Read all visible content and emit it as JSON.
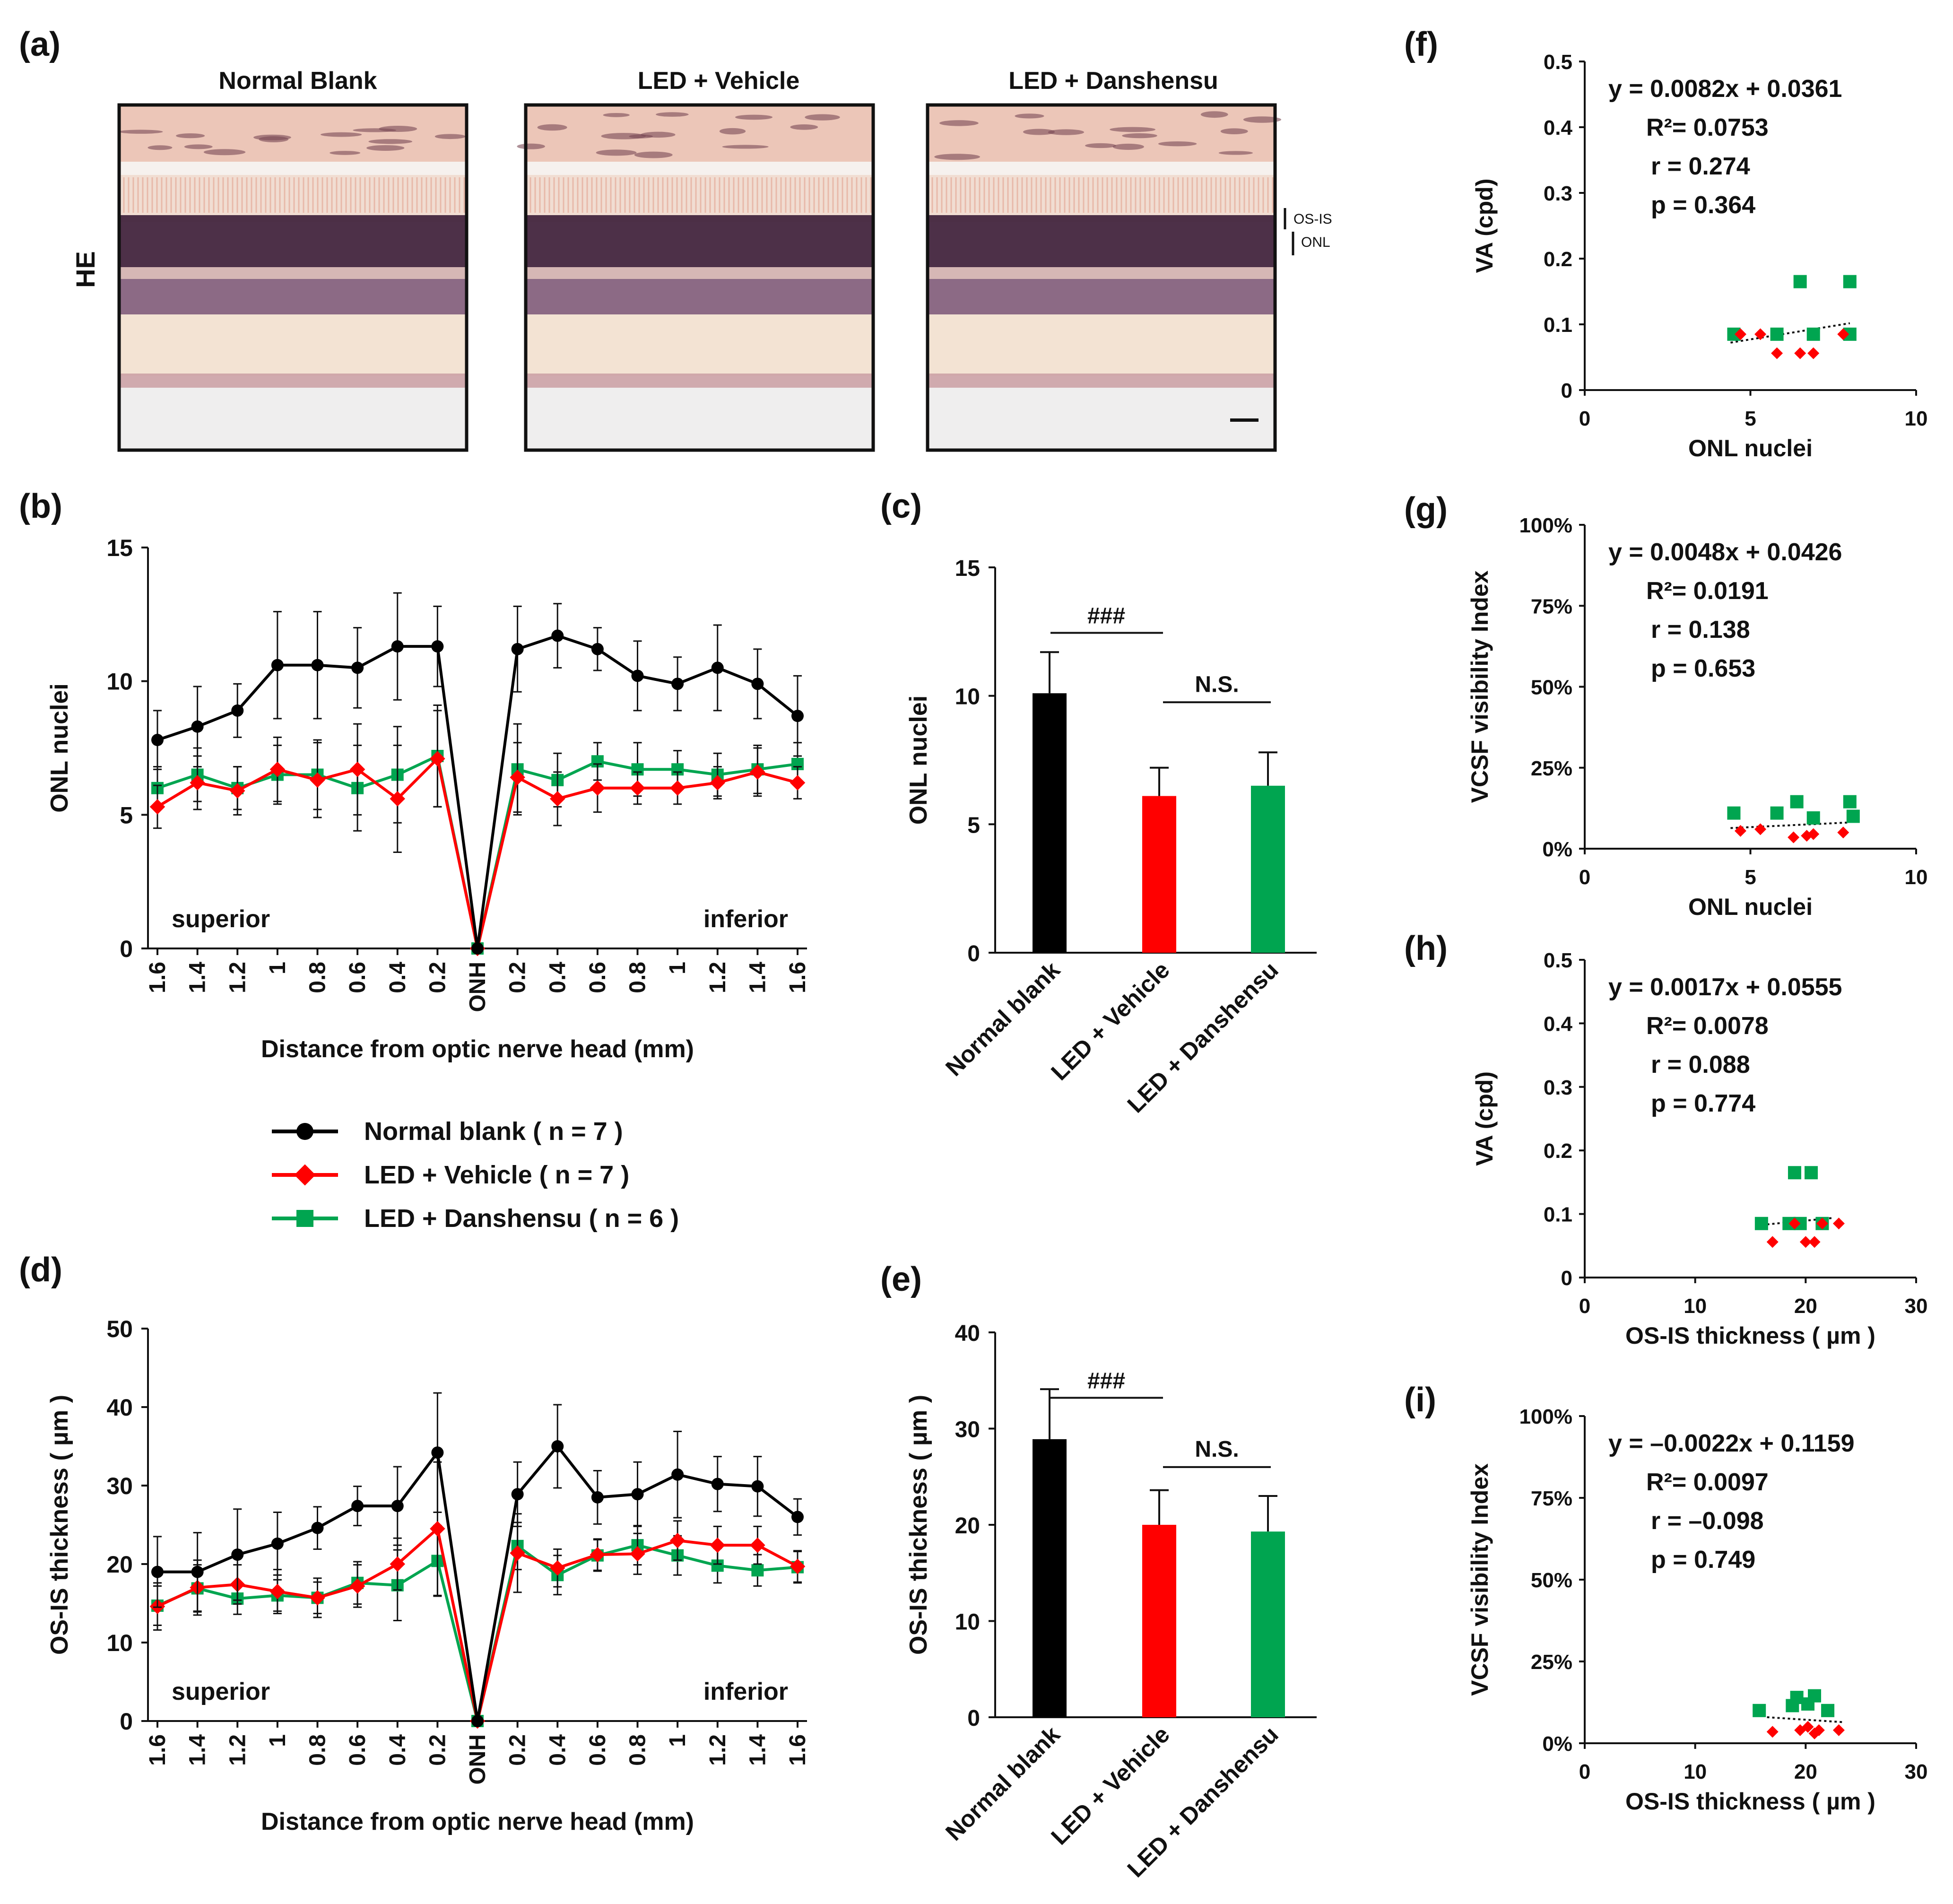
{
  "figure": {
    "colors": {
      "normal": "#000000",
      "vehicle": "#ff0000",
      "danshensu": "#00a550",
      "he_pink": "#ecc6b8",
      "he_nuclei": "#3e1f3a",
      "he_purple": "#8c6a85",
      "he_pale": "#f3e3d3"
    },
    "panel_letters": {
      "a": "(a)",
      "b": "(b)",
      "c": "(c)",
      "d": "(d)",
      "e": "(e)",
      "f": "(f)",
      "g": "(g)",
      "h": "(h)",
      "i": "(i)"
    },
    "histology": {
      "row_label": "HE",
      "titles": [
        "Normal Blank",
        "LED + Vehicle",
        "LED + Danshensu"
      ],
      "layer_labels": [
        "OS-IS",
        "ONL"
      ]
    },
    "legend": [
      {
        "key": "normal",
        "label": "Normal blank ( n = 7 )",
        "marker": "circle"
      },
      {
        "key": "vehicle",
        "label": "LED + Vehicle ( n = 7 )",
        "marker": "diamond"
      },
      {
        "key": "danshensu",
        "label": "LED + Danshensu ( n = 6 )",
        "marker": "square"
      }
    ]
  },
  "chart_data": [
    {
      "id": "b",
      "type": "line",
      "xlabel": "Distance from optic nerve head (mm)",
      "ylabel": "ONL nuclei",
      "x": [
        "1.6",
        "1.4",
        "1.2",
        "1",
        "0.8",
        "0.6",
        "0.4",
        "0.2",
        "ONH",
        "0.2",
        "0.4",
        "0.6",
        "0.8",
        "1",
        "1.2",
        "1.4",
        "1.6"
      ],
      "ylim": [
        0,
        15
      ],
      "yticks": [
        0,
        5,
        10,
        15
      ],
      "annotations": [
        "superior",
        "inferior"
      ],
      "series": [
        {
          "name": "Normal blank",
          "key": "normal",
          "values": [
            7.8,
            8.3,
            8.9,
            10.6,
            10.6,
            10.5,
            11.3,
            11.3,
            0,
            11.2,
            11.7,
            11.2,
            10.2,
            9.9,
            10.5,
            9.9,
            8.7
          ],
          "errors": [
            1.1,
            1.5,
            1.0,
            2.0,
            2.0,
            1.5,
            2.0,
            1.5,
            0,
            1.6,
            1.2,
            0.8,
            1.3,
            1.0,
            1.6,
            1.3,
            1.5
          ]
        },
        {
          "name": "LED + Vehicle",
          "key": "vehicle",
          "values": [
            5.3,
            6.2,
            5.9,
            6.7,
            6.3,
            6.7,
            5.6,
            7.1,
            0,
            6.4,
            5.6,
            6.0,
            6.0,
            6.0,
            6.2,
            6.6,
            6.2
          ],
          "errors": [
            0.8,
            1.0,
            0.9,
            1.2,
            1.4,
            1.7,
            2.0,
            1.8,
            0,
            1.3,
            1.0,
            0.9,
            0.6,
            0.6,
            0.6,
            0.9,
            0.6
          ]
        },
        {
          "name": "LED + Danshensu",
          "key": "danshensu",
          "values": [
            6.0,
            6.5,
            6.0,
            6.5,
            6.5,
            6.0,
            6.5,
            7.2,
            0,
            6.7,
            6.3,
            7.0,
            6.7,
            6.7,
            6.5,
            6.7,
            6.9
          ],
          "errors": [
            0.8,
            1.0,
            0.8,
            1.1,
            1.3,
            1.6,
            1.8,
            1.9,
            0,
            1.7,
            1.0,
            0.7,
            1.0,
            0.7,
            0.8,
            0.9,
            0.8
          ]
        }
      ]
    },
    {
      "id": "c",
      "type": "bar",
      "ylabel": "ONL nuclei",
      "categories": [
        "Normal blank",
        "LED + Vehicle",
        "LED + Danshensu"
      ],
      "values": [
        10.1,
        6.1,
        6.5
      ],
      "errors": [
        1.6,
        1.1,
        1.3
      ],
      "ylim": [
        0,
        15
      ],
      "yticks": [
        0,
        5,
        10,
        15
      ],
      "significance": [
        "###",
        "N.S."
      ]
    },
    {
      "id": "d",
      "type": "line",
      "xlabel": "Distance from optic nerve head (mm)",
      "ylabel": "OS-IS thickness ( µm )",
      "x": [
        "1.6",
        "1.4",
        "1.2",
        "1",
        "0.8",
        "0.6",
        "0.4",
        "0.2",
        "ONH",
        "0.2",
        "0.4",
        "0.6",
        "0.8",
        "1",
        "1.2",
        "1.4",
        "1.6"
      ],
      "ylim": [
        0,
        50
      ],
      "yticks": [
        0,
        10,
        20,
        30,
        40,
        50
      ],
      "annotations": [
        "superior",
        "inferior"
      ],
      "series": [
        {
          "name": "Normal blank",
          "key": "normal",
          "values": [
            19.0,
            19.0,
            21.2,
            22.6,
            24.6,
            27.4,
            27.4,
            34.2,
            0,
            28.9,
            35.0,
            28.5,
            28.9,
            31.4,
            30.2,
            29.9,
            26.0
          ],
          "errors": [
            4.5,
            5.0,
            5.8,
            4.0,
            2.7,
            2.5,
            5.0,
            7.6,
            0,
            4.1,
            5.3,
            3.4,
            4.1,
            5.5,
            3.5,
            3.8,
            2.3
          ]
        },
        {
          "name": "LED + Vehicle",
          "key": "vehicle",
          "values": [
            14.6,
            17.0,
            17.4,
            16.5,
            15.7,
            17.2,
            20.0,
            24.5,
            0,
            21.4,
            19.5,
            21.2,
            21.3,
            23.0,
            22.4,
            22.4,
            19.7
          ],
          "errors": [
            3.0,
            3.5,
            2.5,
            2.8,
            2.5,
            2.7,
            3.3,
            8.5,
            0,
            5.0,
            2.4,
            2.0,
            2.6,
            2.5,
            2.4,
            2.4,
            2.0
          ]
        },
        {
          "name": "LED + Danshensu",
          "key": "danshensu",
          "values": [
            14.7,
            16.9,
            15.6,
            16.0,
            15.7,
            17.6,
            17.3,
            20.4,
            0,
            22.3,
            18.6,
            21.1,
            22.4,
            21.1,
            19.8,
            19.2,
            19.6
          ],
          "errors": [
            2.5,
            3.0,
            2.0,
            2.0,
            2.0,
            2.7,
            4.5,
            4.5,
            0,
            3.0,
            2.5,
            2.0,
            2.5,
            2.5,
            2.2,
            2.0,
            2.0
          ]
        }
      ]
    },
    {
      "id": "e",
      "type": "bar",
      "ylabel": "OS-IS thickness ( µm )",
      "categories": [
        "Normal blank",
        "LED + Vehicle",
        "LED + Danshensu"
      ],
      "values": [
        28.9,
        20.0,
        19.3
      ],
      "errors": [
        5.2,
        3.6,
        3.7
      ],
      "ylim": [
        0,
        40
      ],
      "yticks": [
        0,
        10,
        20,
        30,
        40
      ],
      "significance": [
        "###",
        "N.S."
      ]
    },
    {
      "id": "f",
      "type": "scatter",
      "xlabel": "ONL nuclei",
      "ylabel": "VA (cpd)",
      "xlim": [
        0,
        10
      ],
      "xticks": [
        0,
        5,
        10
      ],
      "ylim": [
        0,
        0.5
      ],
      "yticks": [
        0,
        0.1,
        0.2,
        0.3,
        0.4,
        0.5
      ],
      "yticklabels": [
        "0",
        "0.1",
        "0.2",
        "0.3",
        "0.4",
        "0.5"
      ],
      "stats": [
        "y = 0.0082x + 0.0361",
        "R²= 0.0753",
        "r = 0.274",
        "p = 0.364"
      ],
      "trend": [
        [
          4.4,
          0.0722
        ],
        [
          8.0,
          0.1017
        ]
      ],
      "points": {
        "vehicle": [
          [
            4.7,
            0.085
          ],
          [
            5.3,
            0.085
          ],
          [
            5.8,
            0.056
          ],
          [
            6.5,
            0.056
          ],
          [
            6.9,
            0.056
          ],
          [
            7.8,
            0.085
          ]
        ],
        "danshensu": [
          [
            4.5,
            0.085
          ],
          [
            5.8,
            0.085
          ],
          [
            6.5,
            0.165
          ],
          [
            6.9,
            0.085
          ],
          [
            8.0,
            0.165
          ],
          [
            8.0,
            0.085
          ]
        ]
      }
    },
    {
      "id": "g",
      "type": "scatter",
      "xlabel": "ONL nuclei",
      "ylabel": "VCSF visibility Index",
      "xlim": [
        0,
        10
      ],
      "xticks": [
        0,
        5,
        10
      ],
      "ylim": [
        0,
        1
      ],
      "yticks": [
        0,
        0.25,
        0.5,
        0.75,
        1
      ],
      "yticklabels": [
        "0%",
        "25%",
        "50%",
        "75%",
        "100%"
      ],
      "stats": [
        "y = 0.0048x + 0.0426",
        "R²= 0.0191",
        "r = 0.138",
        "p = 0.653"
      ],
      "trend": [
        [
          4.4,
          0.0637
        ],
        [
          8.0,
          0.081
        ]
      ],
      "points": {
        "vehicle": [
          [
            4.7,
            0.055
          ],
          [
            5.3,
            0.06
          ],
          [
            6.3,
            0.035
          ],
          [
            6.7,
            0.04
          ],
          [
            6.9,
            0.045
          ],
          [
            7.8,
            0.05
          ]
        ],
        "danshensu": [
          [
            4.5,
            0.11
          ],
          [
            5.8,
            0.11
          ],
          [
            6.4,
            0.145
          ],
          [
            6.9,
            0.095
          ],
          [
            8.0,
            0.145
          ],
          [
            8.1,
            0.1
          ]
        ]
      }
    },
    {
      "id": "h",
      "type": "scatter",
      "xlabel": "OS-IS thickness ( µm )",
      "ylabel": "VA (cpd)",
      "xlim": [
        0,
        30
      ],
      "xticks": [
        0,
        10,
        20,
        30
      ],
      "ylim": [
        0,
        0.5
      ],
      "yticks": [
        0,
        0.1,
        0.2,
        0.3,
        0.4,
        0.5
      ],
      "yticklabels": [
        "0",
        "0.1",
        "0.2",
        "0.3",
        "0.4",
        "0.5"
      ],
      "stats": [
        "y = 0.0017x + 0.0555",
        "R²= 0.0078",
        "r = 0.088",
        "p = 0.774"
      ],
      "trend": [
        [
          16.5,
          0.0836
        ],
        [
          22.5,
          0.0938
        ]
      ],
      "points": {
        "vehicle": [
          [
            17.0,
            0.056
          ],
          [
            19.0,
            0.085
          ],
          [
            20.0,
            0.056
          ],
          [
            20.8,
            0.056
          ],
          [
            21.5,
            0.085
          ],
          [
            23.0,
            0.085
          ]
        ],
        "danshensu": [
          [
            16.0,
            0.085
          ],
          [
            18.5,
            0.085
          ],
          [
            19.0,
            0.165
          ],
          [
            20.5,
            0.165
          ],
          [
            19.5,
            0.085
          ],
          [
            21.5,
            0.085
          ]
        ]
      }
    },
    {
      "id": "i",
      "type": "scatter",
      "xlabel": "OS-IS thickness ( µm )",
      "ylabel": "VCSF visibility Index",
      "xlim": [
        0,
        30
      ],
      "xticks": [
        0,
        10,
        20,
        30
      ],
      "ylim": [
        0,
        1
      ],
      "yticks": [
        0,
        0.25,
        0.5,
        0.75,
        1
      ],
      "yticklabels": [
        "0%",
        "25%",
        "50%",
        "75%",
        "100%"
      ],
      "stats": [
        "y = –0.0022x + 0.1159",
        "R²= 0.0097",
        "r = –0.098",
        "p = 0.749"
      ],
      "trend": [
        [
          16.5,
          0.0796
        ],
        [
          23.5,
          0.0642
        ]
      ],
      "points": {
        "vehicle": [
          [
            17.0,
            0.035
          ],
          [
            19.5,
            0.04
          ],
          [
            20.2,
            0.05
          ],
          [
            20.8,
            0.03
          ],
          [
            21.2,
            0.04
          ],
          [
            23.0,
            0.04
          ]
        ],
        "danshensu": [
          [
            15.8,
            0.1
          ],
          [
            18.8,
            0.115
          ],
          [
            19.2,
            0.14
          ],
          [
            20.2,
            0.12
          ],
          [
            20.8,
            0.145
          ],
          [
            22.0,
            0.1
          ]
        ]
      }
    }
  ]
}
